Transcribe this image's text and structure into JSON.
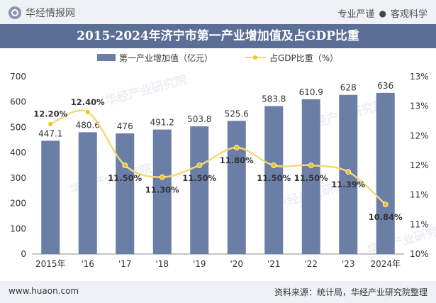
{
  "header": {
    "brand": "华经情报网",
    "motto_left": "专业严谨",
    "motto_separator": "●",
    "motto_right": "客观科学"
  },
  "footer": {
    "site": "www.huaon.com",
    "source": "资料来源：统计局，华经产业研究院整理"
  },
  "watermark": "华经产业研究院",
  "colors": {
    "bar": "#6a7ea6",
    "line": "#f5d77a",
    "marker": "#f0c419",
    "title_bg": "#5b6e95"
  },
  "chart_data": {
    "type": "bar+line",
    "title": "2015-2024年济宁市第一产业增加值及占GDP比重",
    "categories": [
      "2015年",
      "'16",
      "'17",
      "'18",
      "'19",
      "'20",
      "'21",
      "'22",
      "'23",
      "2024年"
    ],
    "series": [
      {
        "name": "第一产业增加值（亿元）",
        "type": "bar",
        "axis": "left",
        "values": [
          447.1,
          480.6,
          476,
          491.2,
          503.8,
          525.6,
          583.8,
          610.9,
          628,
          636
        ],
        "labels": [
          "447.1",
          "480.6",
          "476",
          "491.2",
          "503.8",
          "525.6",
          "583.8",
          "610.9",
          "628",
          "636"
        ]
      },
      {
        "name": "占GDP比重（%）",
        "type": "line",
        "axis": "right",
        "values": [
          12.2,
          12.4,
          11.5,
          11.3,
          11.5,
          11.8,
          11.5,
          11.5,
          11.39,
          10.84
        ],
        "labels": [
          "12.20%",
          "12.40%",
          "11.50%",
          "11.30%",
          "11.50%",
          "11.80%",
          "11.50%",
          "11.50%",
          "11.39%",
          "10.84%"
        ]
      }
    ],
    "y_left": {
      "min": 0,
      "max": 700,
      "ticks": [
        "0",
        "100",
        "200",
        "300",
        "400",
        "500",
        "600",
        "700"
      ]
    },
    "y_right": {
      "min": 10,
      "max": 13,
      "ticks": [
        "10%",
        "11%",
        "11%",
        "12%",
        "12%",
        "13%",
        "13%"
      ]
    },
    "legend_position": "top-center",
    "grid": false
  }
}
